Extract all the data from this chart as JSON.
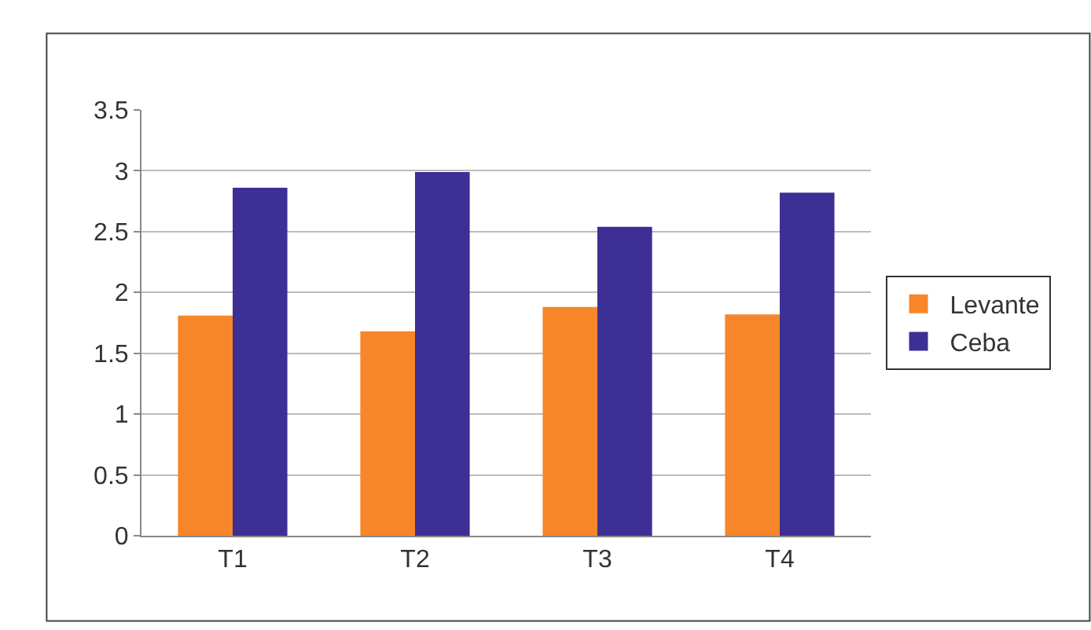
{
  "chart_data": {
    "type": "bar",
    "categories": [
      "T1",
      "T2",
      "T3",
      "T4"
    ],
    "series": [
      {
        "name": "Levante",
        "color": "#f7862a",
        "values": [
          1.81,
          1.68,
          1.88,
          1.82
        ]
      },
      {
        "name": "Ceba",
        "color": "#3d2f94",
        "values": [
          2.86,
          2.99,
          2.54,
          2.82
        ]
      }
    ],
    "ylim": [
      0,
      3.5
    ],
    "yticks": [
      0,
      0.5,
      1,
      1.5,
      2,
      2.5,
      3,
      3.5
    ],
    "grid": "y",
    "legend": "right"
  }
}
